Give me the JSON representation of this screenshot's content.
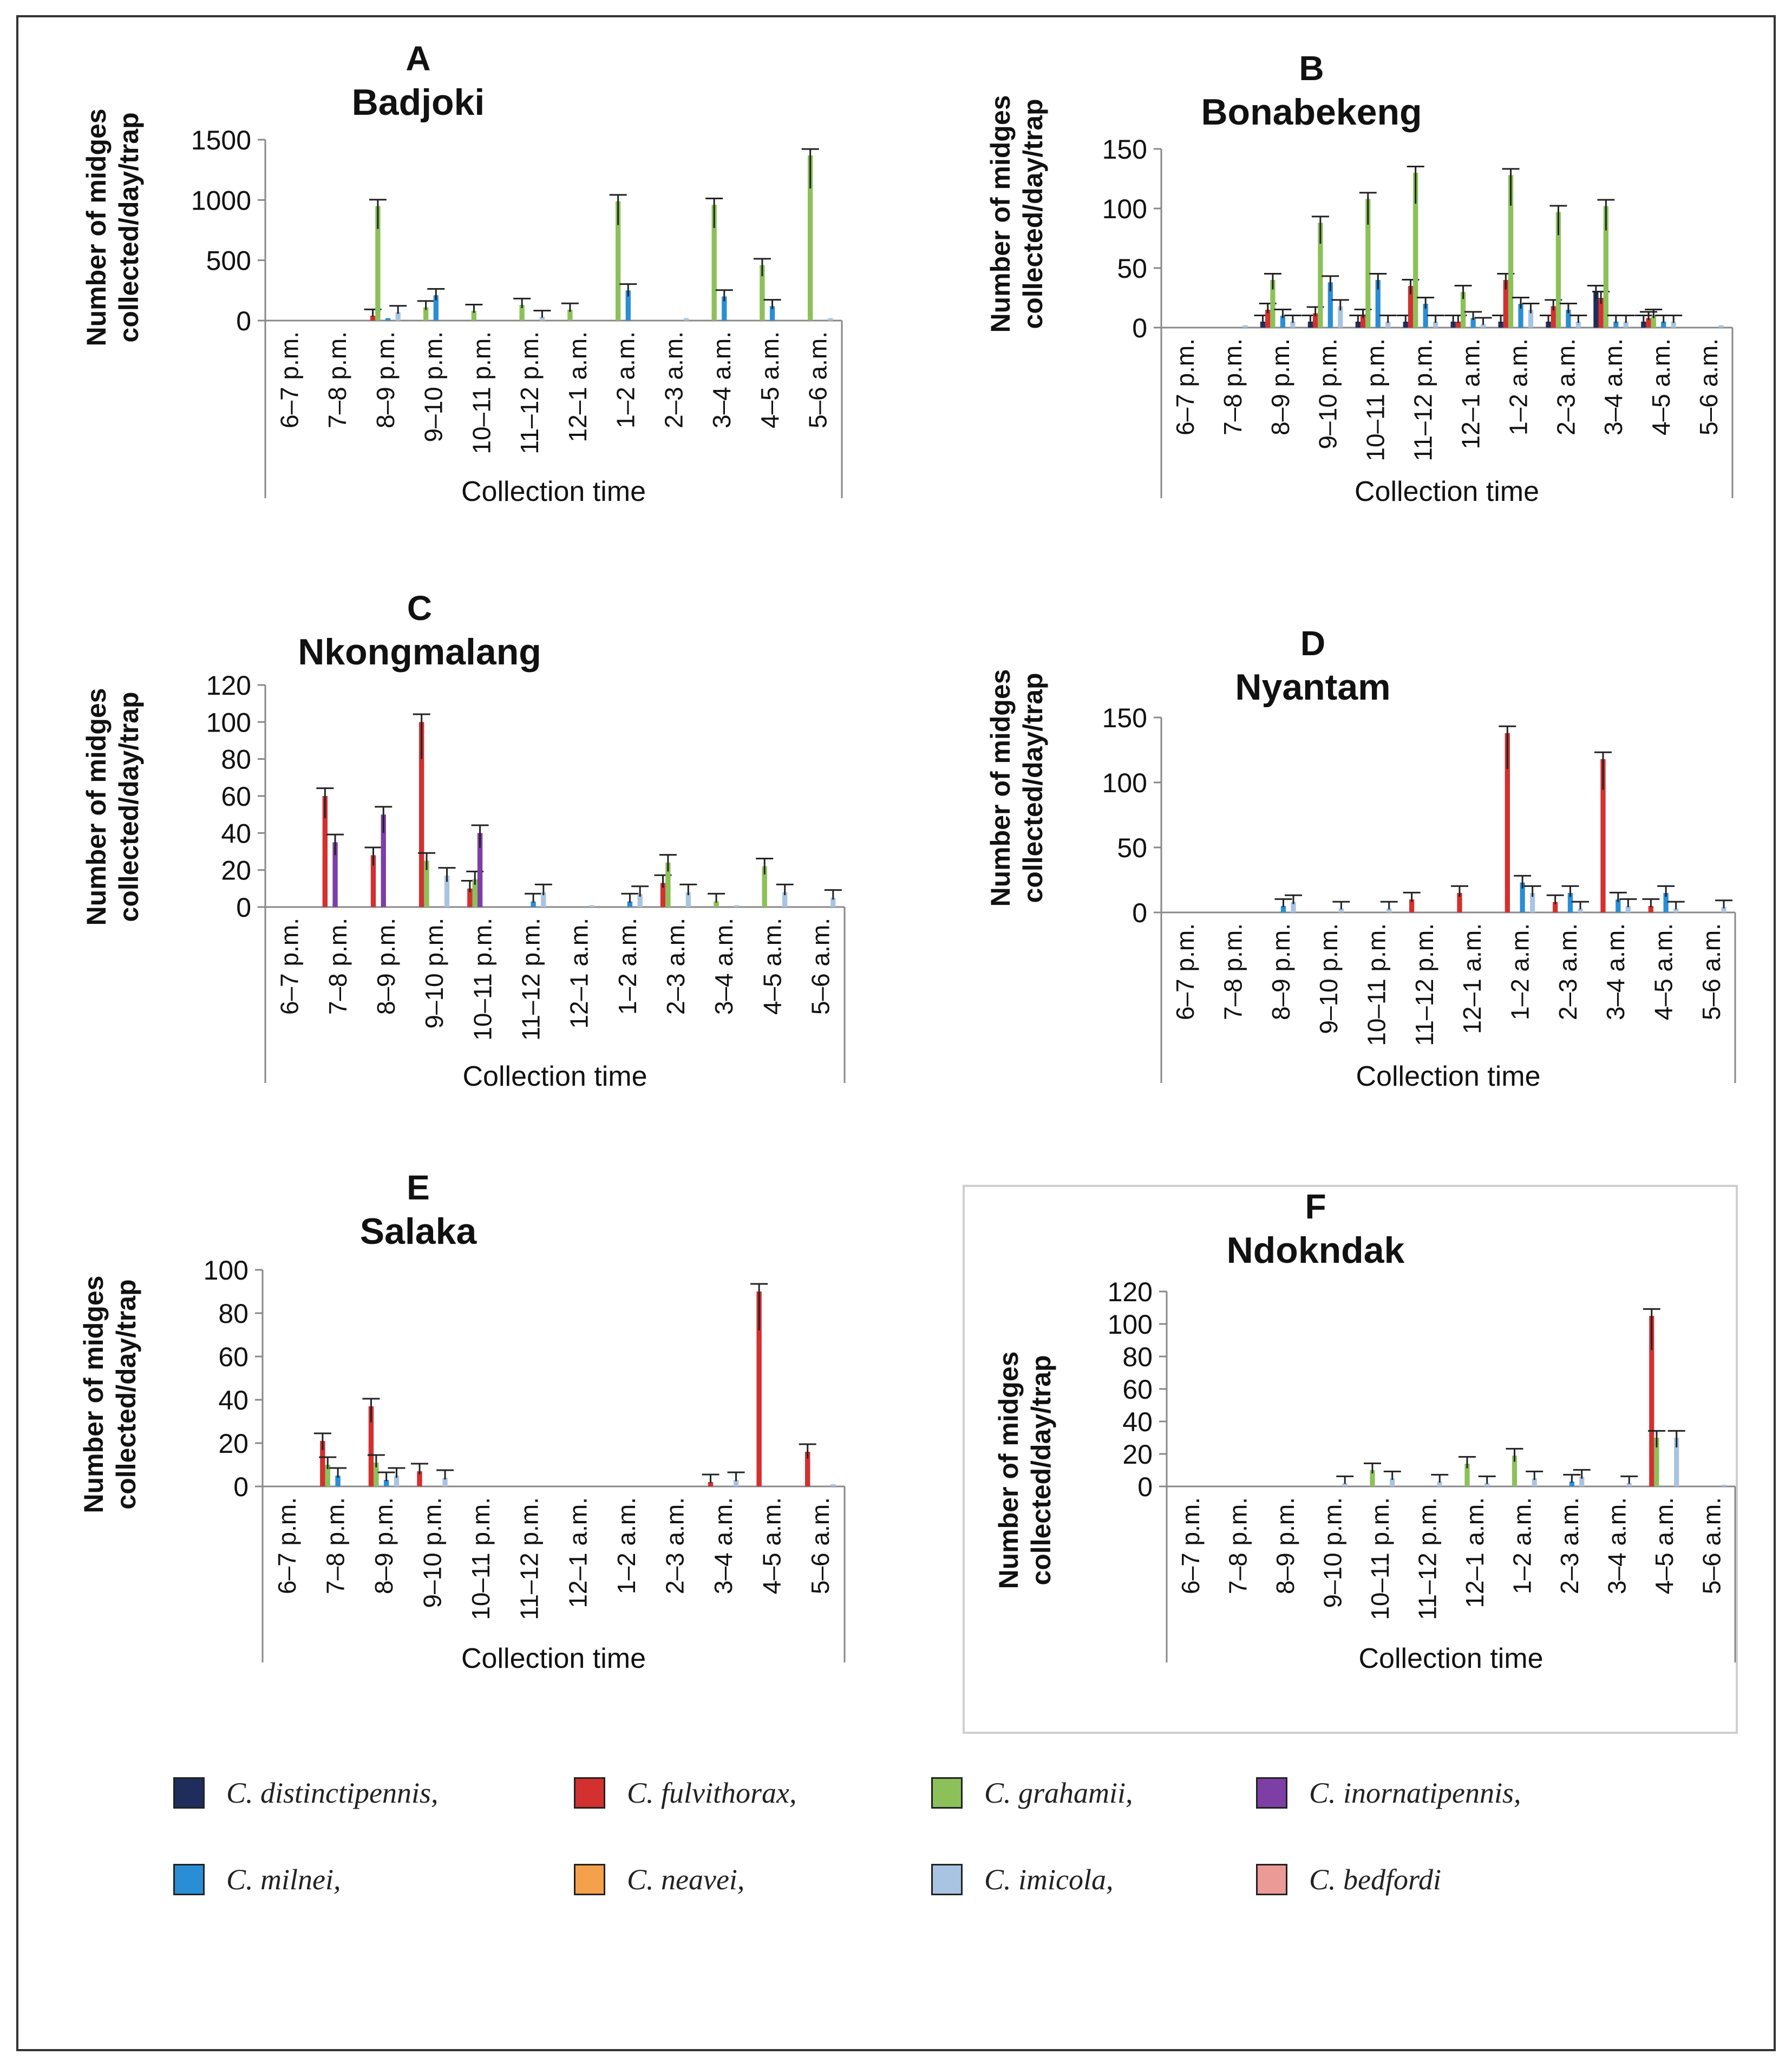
{
  "figure": {
    "background": "#ffffff"
  },
  "species": [
    {
      "name": "C. distinctipennis,",
      "color": "#1f2d5c"
    },
    {
      "name": "C. fulvithorax,",
      "color": "#d33030"
    },
    {
      "name": "C. grahamii,",
      "color": "#8cc15a"
    },
    {
      "name": "C. inornatipennis,",
      "color": "#7d3fa5"
    },
    {
      "name": "C. milnei,",
      "color": "#2a8ed6"
    },
    {
      "name": "C. neavei,",
      "color": "#f5a04a"
    },
    {
      "name": "C. imicola,",
      "color": "#a9c4e2"
    },
    {
      "name": "C. bedfordi",
      "color": "#eb9a96"
    }
  ],
  "chart_data": [
    {
      "panel": "A",
      "title": "Badjoki",
      "type": "bar",
      "ylabel_line1": "Number of midges",
      "ylabel_line2": "collected/day/trap",
      "xlabel": "Collection time",
      "ylim": [
        0,
        1500
      ],
      "yticks": [
        "0",
        "500",
        "1000",
        "1500"
      ],
      "categories": [
        "6–7 p.m.",
        "7–8 p.m.",
        "8–9 p.m.",
        "9–10 p.m.",
        "10–11 p.m.",
        "11–12 p.m.",
        "12–1 a.m.",
        "1–2 a.m.",
        "2–3 a.m.",
        "3–4 a.m.",
        "4–5 a.m.",
        "5–6 a.m."
      ],
      "series": [
        {
          "name": "C. distinctipennis",
          "values": [
            0,
            0,
            0,
            0,
            0,
            0,
            0,
            0,
            0,
            0,
            0,
            0
          ]
        },
        {
          "name": "C. fulvithorax",
          "values": [
            0,
            0,
            40,
            0,
            0,
            0,
            0,
            0,
            0,
            0,
            0,
            0
          ]
        },
        {
          "name": "C. grahamii",
          "values": [
            0,
            0,
            950,
            110,
            80,
            130,
            90,
            990,
            0,
            960,
            460,
            1370
          ]
        },
        {
          "name": "C. inornatipennis",
          "values": [
            0,
            0,
            0,
            0,
            0,
            0,
            0,
            0,
            0,
            0,
            0,
            0
          ]
        },
        {
          "name": "C. milnei",
          "values": [
            0,
            0,
            20,
            210,
            0,
            0,
            0,
            250,
            0,
            200,
            120,
            0
          ]
        },
        {
          "name": "C. neavei",
          "values": [
            0,
            0,
            0,
            0,
            0,
            0,
            0,
            0,
            0,
            0,
            0,
            0
          ]
        },
        {
          "name": "C. imicola",
          "values": [
            0,
            0,
            70,
            0,
            0,
            30,
            0,
            0,
            20,
            0,
            0,
            20
          ]
        },
        {
          "name": "C. bedfordi",
          "values": [
            0,
            0,
            0,
            0,
            0,
            0,
            0,
            0,
            0,
            0,
            0,
            0
          ]
        }
      ]
    },
    {
      "panel": "B",
      "title": "Bonabekeng",
      "type": "bar",
      "ylabel_line1": "Number of midges",
      "ylabel_line2": "collected/day/trap",
      "xlabel": "Collection time",
      "ylim": [
        0,
        150
      ],
      "yticks": [
        "0",
        "50",
        "100",
        "150"
      ],
      "categories": [
        "6–7 p.m.",
        "7–8 p.m.",
        "8–9 p.m.",
        "9–10 p.m.",
        "10–11 p.m.",
        "11–12 p.m.",
        "12–1 a.m.",
        "1–2 a.m.",
        "2–3 a.m.",
        "3–4 a.m.",
        "4–5 a.m.",
        "5–6 a.m."
      ],
      "series": [
        {
          "name": "C. distinctipennis",
          "values": [
            0,
            0,
            5,
            5,
            5,
            5,
            5,
            5,
            5,
            30,
            5,
            0
          ]
        },
        {
          "name": "C. fulvithorax",
          "values": [
            0,
            0,
            15,
            12,
            10,
            35,
            5,
            40,
            18,
            25,
            8,
            0
          ]
        },
        {
          "name": "C. grahamii",
          "values": [
            0,
            0,
            40,
            88,
            108,
            130,
            30,
            128,
            97,
            102,
            10,
            0
          ]
        },
        {
          "name": "C. inornatipennis",
          "values": [
            0,
            0,
            0,
            0,
            0,
            0,
            0,
            0,
            0,
            0,
            0,
            0
          ]
        },
        {
          "name": "C. milnei",
          "values": [
            0,
            0,
            10,
            38,
            40,
            20,
            8,
            20,
            15,
            5,
            5,
            0
          ]
        },
        {
          "name": "C. neavei",
          "values": [
            0,
            0,
            0,
            0,
            0,
            0,
            0,
            0,
            0,
            0,
            0,
            0
          ]
        },
        {
          "name": "C. imicola",
          "values": [
            0,
            2,
            5,
            18,
            5,
            5,
            3,
            15,
            5,
            5,
            5,
            2
          ]
        },
        {
          "name": "C. bedfordi",
          "values": [
            0,
            0,
            0,
            0,
            0,
            0,
            0,
            0,
            0,
            0,
            0,
            0
          ]
        }
      ]
    },
    {
      "panel": "C",
      "title": "Nkongmalang",
      "type": "bar",
      "ylabel_line1": "Number of midges",
      "ylabel_line2": "collected/day/trap",
      "xlabel": "Collection time",
      "ylim": [
        0,
        120
      ],
      "yticks": [
        "0",
        "20",
        "40",
        "60",
        "80",
        "100",
        "120"
      ],
      "categories": [
        "6–7 p.m.",
        "7–8 p.m.",
        "8–9 p.m.",
        "9–10 p.m.",
        "10–11 p.m.",
        "11–12 p.m.",
        "12–1 a.m.",
        "1–2 a.m.",
        "2–3 a.m.",
        "3–4 a.m.",
        "4–5 a.m.",
        "5–6 a.m."
      ],
      "series": [
        {
          "name": "C. distinctipennis",
          "values": [
            0,
            0,
            0,
            0,
            0,
            0,
            0,
            0,
            0,
            0,
            0,
            0
          ]
        },
        {
          "name": "C. fulvithorax",
          "values": [
            0,
            60,
            28,
            100,
            10,
            0,
            0,
            0,
            13,
            0,
            0,
            0
          ]
        },
        {
          "name": "C. grahamii",
          "values": [
            0,
            0,
            0,
            25,
            15,
            0,
            0,
            0,
            24,
            3,
            22,
            0
          ]
        },
        {
          "name": "C. inornatipennis",
          "values": [
            0,
            35,
            50,
            0,
            40,
            0,
            0,
            0,
            0,
            0,
            0,
            0
          ]
        },
        {
          "name": "C. milnei",
          "values": [
            0,
            0,
            0,
            0,
            0,
            3,
            0,
            3,
            0,
            0,
            0,
            0
          ]
        },
        {
          "name": "C. neavei",
          "values": [
            0,
            0,
            0,
            0,
            0,
            0,
            0,
            0,
            0,
            0,
            0,
            0
          ]
        },
        {
          "name": "C. imicola",
          "values": [
            0,
            0,
            0,
            17,
            0,
            8,
            1,
            7,
            8,
            1,
            8,
            5
          ]
        },
        {
          "name": "C. bedfordi",
          "values": [
            0,
            0,
            0,
            0,
            0,
            0,
            0,
            0,
            0,
            0,
            0,
            0
          ]
        }
      ]
    },
    {
      "panel": "D",
      "title": "Nyantam",
      "type": "bar",
      "ylabel_line1": "Number of midges",
      "ylabel_line2": "collected/day/trap",
      "xlabel": "Collection time",
      "ylim": [
        0,
        150
      ],
      "yticks": [
        "0",
        "50",
        "100",
        "150"
      ],
      "categories": [
        "6–7 p.m.",
        "7–8 p.m.",
        "8–9 p.m.",
        "9–10 p.m.",
        "10–11 p.m.",
        "11–12 p.m.",
        "12–1 a.m.",
        "1–2 a.m.",
        "2–3 a.m.",
        "3–4 a.m.",
        "4–5 a.m.",
        "5–6 a.m."
      ],
      "series": [
        {
          "name": "C. distinctipennis",
          "values": [
            0,
            0,
            0,
            0,
            0,
            0,
            0,
            0,
            0,
            0,
            0,
            0
          ]
        },
        {
          "name": "C. fulvithorax",
          "values": [
            0,
            0,
            0,
            0,
            0,
            10,
            15,
            138,
            8,
            118,
            5,
            0
          ]
        },
        {
          "name": "C. grahamii",
          "values": [
            0,
            0,
            0,
            0,
            0,
            0,
            0,
            0,
            0,
            0,
            0,
            0
          ]
        },
        {
          "name": "C. inornatipennis",
          "values": [
            0,
            0,
            0,
            0,
            0,
            0,
            0,
            0,
            0,
            0,
            0,
            0
          ]
        },
        {
          "name": "C. milnei",
          "values": [
            0,
            0,
            5,
            0,
            0,
            0,
            0,
            23,
            15,
            10,
            15,
            0
          ]
        },
        {
          "name": "C. neavei",
          "values": [
            0,
            0,
            0,
            0,
            0,
            0,
            0,
            0,
            0,
            0,
            0,
            0
          ]
        },
        {
          "name": "C. imicola",
          "values": [
            0,
            0,
            8,
            3,
            3,
            0,
            0,
            15,
            3,
            5,
            3,
            4
          ]
        },
        {
          "name": "C. bedfordi",
          "values": [
            0,
            0,
            0,
            0,
            0,
            0,
            0,
            0,
            0,
            0,
            0,
            0
          ]
        }
      ]
    },
    {
      "panel": "E",
      "title": "Salaka",
      "type": "bar",
      "ylabel_line1": "Number of midges",
      "ylabel_line2": "collected/day/trap",
      "xlabel": "Collection time",
      "ylim": [
        0,
        100
      ],
      "yticks": [
        "0",
        "20",
        "40",
        "60",
        "80",
        "100"
      ],
      "categories": [
        "6–7 p.m.",
        "7–8 p.m.",
        "8–9 p.m.",
        "9–10 p.m.",
        "10–11 p.m.",
        "11–12 p.m.",
        "12–1 a.m.",
        "1–2 a.m.",
        "2–3 a.m.",
        "3–4 a.m.",
        "4–5 a.m.",
        "5–6 a.m."
      ],
      "series": [
        {
          "name": "C. distinctipennis",
          "values": [
            0,
            0,
            0,
            0,
            0,
            0,
            0,
            0,
            0,
            0,
            0,
            0
          ]
        },
        {
          "name": "C. fulvithorax",
          "values": [
            0,
            21,
            37,
            7,
            0,
            0,
            0,
            0,
            0,
            2,
            90,
            16
          ]
        },
        {
          "name": "C. grahamii",
          "values": [
            0,
            10,
            11,
            0,
            0,
            0,
            0,
            0,
            0,
            0,
            0,
            0
          ]
        },
        {
          "name": "C. inornatipennis",
          "values": [
            0,
            0,
            0,
            0,
            0,
            0,
            0,
            0,
            0,
            0,
            0,
            0
          ]
        },
        {
          "name": "C. milnei",
          "values": [
            0,
            5,
            3,
            0,
            0,
            0,
            0,
            0,
            0,
            0,
            0,
            0
          ]
        },
        {
          "name": "C. neavei",
          "values": [
            0,
            0,
            0,
            0,
            0,
            0,
            0,
            0,
            0,
            0,
            0,
            0
          ]
        },
        {
          "name": "C. imicola",
          "values": [
            0,
            0,
            5,
            4,
            0,
            0,
            0,
            0,
            0,
            3,
            0,
            1
          ]
        },
        {
          "name": "C. bedfordi",
          "values": [
            0,
            0,
            0,
            0,
            0,
            0,
            0,
            0,
            0,
            0,
            0,
            0
          ]
        }
      ]
    },
    {
      "panel": "F",
      "title": "Ndokndak",
      "type": "bar",
      "ylabel_line1": "Number of midges",
      "ylabel_line2": "collected/day/trap",
      "xlabel": "Collection time",
      "ylim": [
        0,
        120
      ],
      "yticks": [
        "0",
        "20",
        "40",
        "60",
        "80",
        "100",
        "120"
      ],
      "categories": [
        "6–7 p.m.",
        "7–8 p.m.",
        "8–9 p.m.",
        "9–10 p.m.",
        "10–11 p.m.",
        "11–12 p.m.",
        "12–1 a.m.",
        "1–2 a.m.",
        "2–3 a.m.",
        "3–4 a.m.",
        "4–5 a.m.",
        "5–6 a.m."
      ],
      "series": [
        {
          "name": "C. distinctipennis",
          "values": [
            0,
            0,
            0,
            0,
            0,
            0,
            0,
            0,
            0,
            0,
            0,
            0
          ]
        },
        {
          "name": "C. fulvithorax",
          "values": [
            0,
            0,
            0,
            0,
            0,
            0,
            0,
            0,
            0,
            0,
            105,
            0
          ]
        },
        {
          "name": "C. grahamii",
          "values": [
            0,
            0,
            0,
            0,
            10,
            0,
            14,
            19,
            0,
            0,
            30,
            0
          ]
        },
        {
          "name": "C. inornatipennis",
          "values": [
            0,
            0,
            0,
            0,
            0,
            0,
            0,
            0,
            0,
            0,
            0,
            0
          ]
        },
        {
          "name": "C. milnei",
          "values": [
            0,
            0,
            0,
            0,
            0,
            0,
            0,
            0,
            3,
            0,
            0,
            0
          ]
        },
        {
          "name": "C. neavei",
          "values": [
            0,
            0,
            0,
            0,
            0,
            0,
            0,
            0,
            0,
            0,
            0,
            0
          ]
        },
        {
          "name": "C. imicola",
          "values": [
            0,
            0,
            0,
            2,
            5,
            3,
            2,
            5,
            6,
            2,
            30,
            1
          ]
        },
        {
          "name": "C. bedfordi",
          "values": [
            0,
            0,
            0,
            0,
            0,
            0,
            0,
            0,
            0,
            0,
            0,
            0
          ]
        }
      ]
    }
  ]
}
